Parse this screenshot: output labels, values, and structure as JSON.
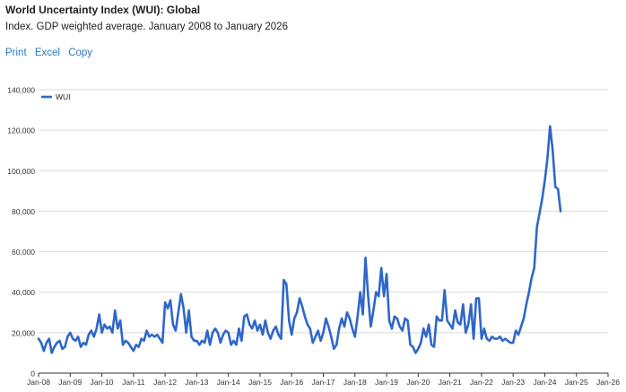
{
  "header": {
    "title": "World Uncertainty Index (WUI): Global",
    "subtitle": "Index. GDP weighted average. January 2008 to January 2026"
  },
  "actions": [
    "Print",
    "Excel",
    "Copy"
  ],
  "colors": {
    "line": "#2f67c9",
    "link": "#2b78c2",
    "grid": "#d9d9d9"
  },
  "chart_data": {
    "type": "line",
    "title": "",
    "xlabel": "",
    "ylabel": "",
    "ylim": [
      0,
      140000
    ],
    "y_ticks": [
      0,
      20000,
      40000,
      60000,
      80000,
      100000,
      120000,
      140000
    ],
    "y_tick_labels": [
      "0",
      "20,000",
      "40,000",
      "60,000",
      "80,000",
      "100,000",
      "120,000",
      "140,000"
    ],
    "x_tick_labels": [
      "Jan-08",
      "Jan-09",
      "Jan-10",
      "Jan-11",
      "Jan-12",
      "Jan-13",
      "Jan-14",
      "Jan-15",
      "Jan-16",
      "Jan-17",
      "Jan-18",
      "Jan-19",
      "Jan-20",
      "Jan-21",
      "Jan-22",
      "Jan-23",
      "Jan-24",
      "Jan-25",
      "Jan-26"
    ],
    "x_range": [
      "Jan-08",
      "Jan-26"
    ],
    "grid": true,
    "legend_position": "top-left",
    "series": [
      {
        "name": "WUI",
        "values": [
          17000,
          15000,
          11000,
          15000,
          17000,
          10000,
          13000,
          15000,
          16000,
          12000,
          13000,
          18000,
          20000,
          17000,
          16000,
          18000,
          13000,
          15000,
          14000,
          19000,
          21000,
          18000,
          22000,
          29000,
          20000,
          24000,
          22000,
          23000,
          20000,
          31000,
          22000,
          26000,
          14000,
          16000,
          15000,
          13000,
          11000,
          14000,
          13000,
          17000,
          16000,
          21000,
          18000,
          19000,
          18000,
          19000,
          17000,
          15000,
          35000,
          32000,
          36000,
          24000,
          21000,
          30000,
          39000,
          32000,
          20000,
          31000,
          18000,
          16000,
          16000,
          14000,
          16000,
          15000,
          21000,
          14000,
          20000,
          22000,
          20000,
          15000,
          19000,
          21000,
          20000,
          14000,
          16000,
          14000,
          22000,
          16000,
          28000,
          29000,
          24000,
          22000,
          26000,
          21000,
          24000,
          19000,
          26000,
          20000,
          17000,
          21000,
          23000,
          19000,
          17000,
          46000,
          44000,
          26000,
          19000,
          27000,
          30000,
          37000,
          33000,
          28000,
          24000,
          22000,
          15000,
          18000,
          21000,
          16000,
          20000,
          27000,
          23000,
          18000,
          12000,
          14000,
          22000,
          27000,
          23000,
          30000,
          27000,
          22000,
          18000,
          28000,
          40000,
          29000,
          57000,
          38000,
          23000,
          31000,
          40000,
          38000,
          52000,
          38000,
          49000,
          26000,
          22000,
          28000,
          27000,
          23000,
          21000,
          27000,
          26000,
          14000,
          13000,
          10000,
          12000,
          15000,
          22000,
          18000,
          24000,
          14000,
          13000,
          28000,
          26000,
          26000,
          41000,
          26000,
          24000,
          22000,
          31000,
          25000,
          24000,
          34000,
          20000,
          24000,
          34000,
          17000,
          37000,
          37000,
          17000,
          22000,
          17000,
          16000,
          18000,
          17000,
          17000,
          18000,
          16000,
          17000,
          16000,
          15000,
          15000,
          21000,
          19000,
          23000,
          27000,
          34000,
          40000,
          47000,
          52000,
          72000,
          79000,
          86000,
          95000,
          106000,
          122000,
          110000,
          92000,
          91000,
          80000
        ]
      }
    ]
  }
}
